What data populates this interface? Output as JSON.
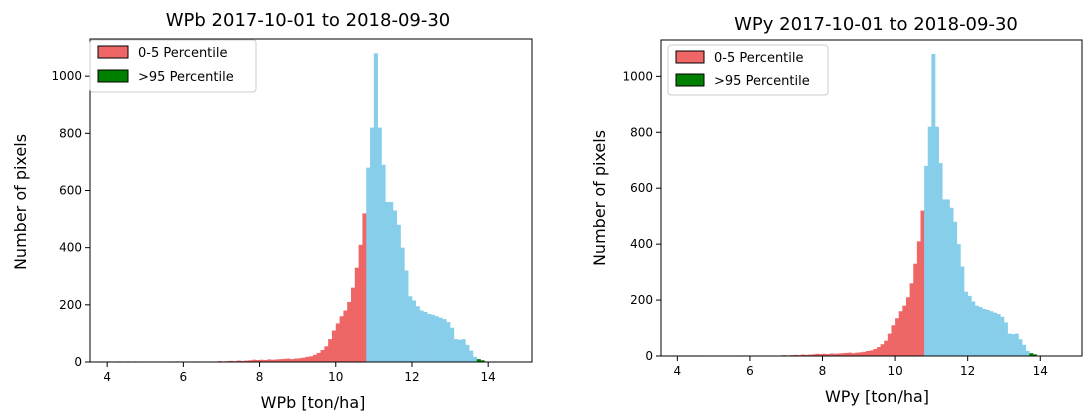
{
  "chart_data": [
    {
      "type": "histogram",
      "title": "WPb 2017-10-01 to 2018-09-30",
      "xlabel": "WPb [ton/ha]",
      "ylabel": "Number of pixels",
      "xlim": [
        3.55,
        15.15
      ],
      "ylim": [
        0,
        1130
      ],
      "xticks": [
        4,
        6,
        8,
        10,
        12,
        14
      ],
      "yticks": [
        0,
        200,
        400,
        600,
        800,
        1000
      ],
      "bin_start": 3.8,
      "bin_width": 0.1,
      "p5": 10.8,
      "p95": 13.7,
      "counts": [
        2,
        1,
        2,
        1,
        2,
        2,
        1,
        2,
        1,
        2,
        1,
        1,
        1,
        1,
        1,
        1,
        1,
        1,
        2,
        1,
        2,
        1,
        1,
        1,
        1,
        2,
        1,
        1,
        1,
        1,
        2,
        3,
        2,
        3,
        4,
        3,
        5,
        4,
        5,
        6,
        8,
        7,
        8,
        7,
        9,
        8,
        9,
        10,
        11,
        12,
        10,
        12,
        13,
        15,
        18,
        20,
        25,
        32,
        42,
        55,
        80,
        110,
        135,
        160,
        180,
        210,
        260,
        330,
        410,
        520,
        680,
        820,
        1080,
        820,
        690,
        560,
        560,
        530,
        480,
        400,
        320,
        230,
        215,
        195,
        180,
        175,
        168,
        165,
        160,
        155,
        150,
        140,
        120,
        80,
        78,
        80,
        60,
        40,
        18,
        10,
        6
      ],
      "legend": {
        "location": "upper-left",
        "entries": [
          {
            "label": "0-5 Percentile",
            "color": "#ee6666"
          },
          {
            "label": ">95 Percentile",
            "color": "#008000"
          }
        ]
      },
      "colors": {
        "low": "#ee6666",
        "mid": "#87ceeb",
        "high": "#008000"
      }
    },
    {
      "type": "histogram",
      "title": "WPy 2017-10-01 to 2018-09-30",
      "xlabel": "WPy [ton/ha]",
      "ylabel": "Number of pixels",
      "xlim": [
        3.55,
        15.15
      ],
      "ylim": [
        0,
        1130
      ],
      "xticks": [
        4,
        6,
        8,
        10,
        12,
        14
      ],
      "yticks": [
        0,
        200,
        400,
        600,
        800,
        1000
      ],
      "bin_start": 3.8,
      "bin_width": 0.1,
      "p5": 10.8,
      "p95": 13.7,
      "counts": [
        2,
        1,
        2,
        1,
        2,
        2,
        1,
        2,
        1,
        2,
        1,
        1,
        1,
        1,
        1,
        1,
        1,
        1,
        2,
        1,
        2,
        1,
        1,
        1,
        1,
        2,
        1,
        1,
        1,
        1,
        2,
        3,
        2,
        3,
        4,
        3,
        5,
        4,
        5,
        6,
        8,
        7,
        8,
        7,
        9,
        8,
        9,
        10,
        11,
        12,
        10,
        12,
        13,
        15,
        18,
        20,
        25,
        32,
        42,
        55,
        80,
        110,
        135,
        160,
        180,
        210,
        260,
        330,
        410,
        520,
        680,
        820,
        1080,
        820,
        690,
        560,
        560,
        530,
        480,
        400,
        320,
        230,
        215,
        195,
        180,
        175,
        168,
        165,
        160,
        155,
        150,
        140,
        120,
        80,
        78,
        80,
        60,
        40,
        18,
        10,
        6
      ],
      "legend": {
        "location": "upper-left",
        "entries": [
          {
            "label": "0-5 Percentile",
            "color": "#ee6666"
          },
          {
            "label": ">95 Percentile",
            "color": "#008000"
          }
        ]
      },
      "colors": {
        "low": "#ee6666",
        "mid": "#87ceeb",
        "high": "#008000"
      }
    }
  ]
}
